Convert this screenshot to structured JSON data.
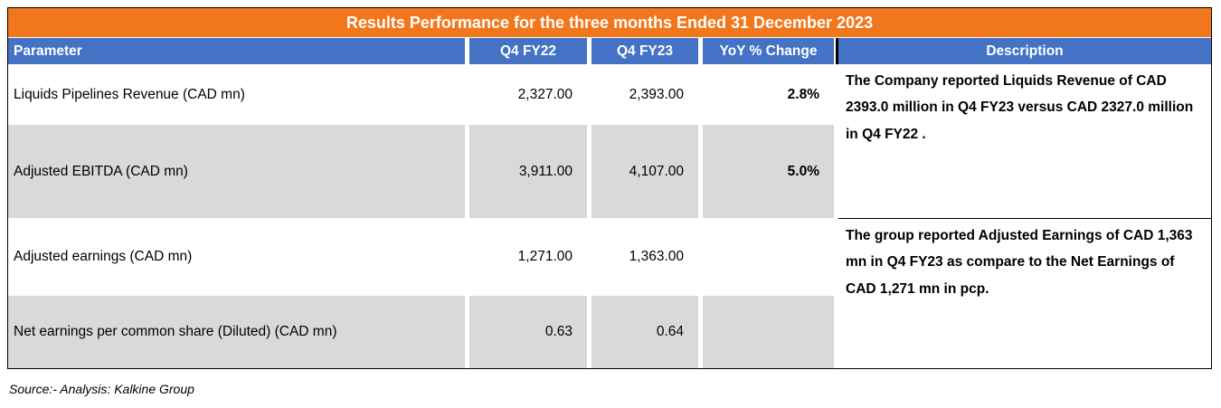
{
  "colors": {
    "orange": "#F2761B",
    "blue": "#4472C4",
    "gray": "#D9D9D9",
    "text": "#000000"
  },
  "chart_data": {
    "type": "table",
    "title": "Results Performance for the three months Ended 31 December 2023",
    "columns": [
      "Parameter",
      "Q4 FY22",
      "Q4 FY23",
      "YoY % Change",
      "Description"
    ],
    "rows": [
      {
        "parameter": "Liquids Pipelines Revenue  (CAD mn)",
        "q4_fy22": "2,327.00",
        "q4_fy23": "2,393.00",
        "yoy_change": "2.8%"
      },
      {
        "parameter": "Adjusted EBITDA (CAD mn)",
        "q4_fy22": "3,911.00",
        "q4_fy23": "4,107.00",
        "yoy_change": "5.0%"
      },
      {
        "parameter": "Adjusted earnings (CAD mn)",
        "q4_fy22": "1,271.00",
        "q4_fy23": "1,363.00",
        "yoy_change": ""
      },
      {
        "parameter": "Net earnings per common share (Diluted)  (CAD mn)",
        "q4_fy22": "0.63",
        "q4_fy23": "0.64",
        "yoy_change": ""
      }
    ],
    "descriptions": [
      "The Company reported Liquids Revenue of CAD 2393.0 million in Q4 FY23 versus  CAD 2327.0 million in Q4 FY22 .",
      "The group reported Adjusted Earnings of CAD 1,363 mn in Q4 FY23 as compare to the Net Earnings of CAD 1,271  mn in pcp."
    ],
    "source": "Source:- Analysis: Kalkine Group"
  }
}
